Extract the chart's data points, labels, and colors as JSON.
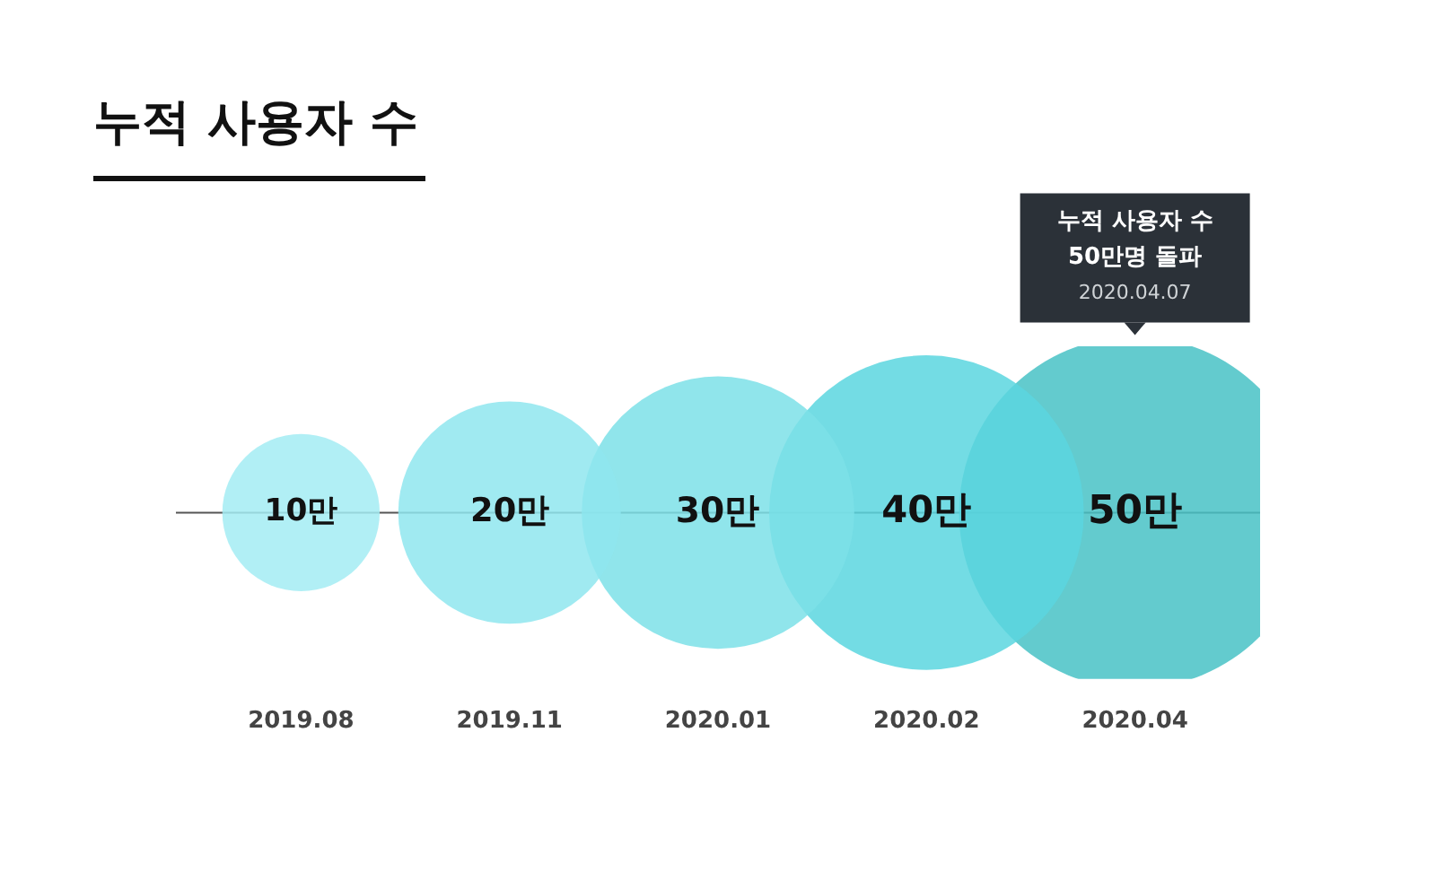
{
  "chart_data": {
    "type": "other",
    "title": "누적 사용자 수",
    "categories": [
      "2019.08",
      "2019.11",
      "2020.01",
      "2020.02",
      "2020.04"
    ],
    "values": [
      10,
      20,
      30,
      40,
      50
    ],
    "value_labels": [
      "10만",
      "20만",
      "30만",
      "40만",
      "50만"
    ],
    "colors": [
      "#a3ecf3",
      "#8fe6ee",
      "#7de0e8",
      "#5bd6df",
      "#48c2c6"
    ],
    "annotations": [
      "누적 사용자 수\n50만명 돌파",
      "2020.04.07"
    ],
    "legend": false
  }
}
